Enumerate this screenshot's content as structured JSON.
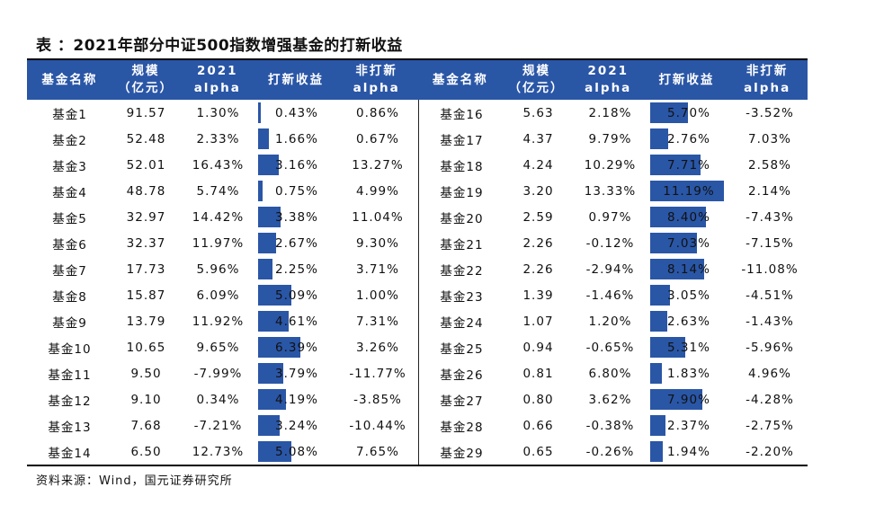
{
  "title": "表 ：2021年部分中证500指数增强基金的打新收益",
  "headers": {
    "name": "基金名称",
    "scale_line1": "规模",
    "scale_line2": "（亿元）",
    "alpha_line1": "2021",
    "alpha_line2": "alpha",
    "ipo": "打新收益",
    "nonipo_line1": "非打新",
    "nonipo_line2": "alpha"
  },
  "bar_max": 11.19,
  "left_rows": [
    {
      "name": "基金1",
      "scale": "91.57",
      "alpha": "1.30%",
      "ipo": "0.43%",
      "ipo_value": 0.43,
      "nonipo": "0.86%"
    },
    {
      "name": "基金2",
      "scale": "52.48",
      "alpha": "2.33%",
      "ipo": "1.66%",
      "ipo_value": 1.66,
      "nonipo": "0.67%"
    },
    {
      "name": "基金3",
      "scale": "52.01",
      "alpha": "16.43%",
      "ipo": "3.16%",
      "ipo_value": 3.16,
      "nonipo": "13.27%"
    },
    {
      "name": "基金4",
      "scale": "48.78",
      "alpha": "5.74%",
      "ipo": "0.75%",
      "ipo_value": 0.75,
      "nonipo": "4.99%"
    },
    {
      "name": "基金5",
      "scale": "32.97",
      "alpha": "14.42%",
      "ipo": "3.38%",
      "ipo_value": 3.38,
      "nonipo": "11.04%"
    },
    {
      "name": "基金6",
      "scale": "32.37",
      "alpha": "11.97%",
      "ipo": "2.67%",
      "ipo_value": 2.67,
      "nonipo": "9.30%"
    },
    {
      "name": "基金7",
      "scale": "17.73",
      "alpha": "5.96%",
      "ipo": "2.25%",
      "ipo_value": 2.25,
      "nonipo": "3.71%"
    },
    {
      "name": "基金8",
      "scale": "15.87",
      "alpha": "6.09%",
      "ipo": "5.09%",
      "ipo_value": 5.09,
      "nonipo": "1.00%"
    },
    {
      "name": "基金9",
      "scale": "13.79",
      "alpha": "11.92%",
      "ipo": "4.61%",
      "ipo_value": 4.61,
      "nonipo": "7.31%"
    },
    {
      "name": "基金10",
      "scale": "10.65",
      "alpha": "9.65%",
      "ipo": "6.39%",
      "ipo_value": 6.39,
      "nonipo": "3.26%"
    },
    {
      "name": "基金11",
      "scale": "9.50",
      "alpha": "-7.99%",
      "ipo": "3.79%",
      "ipo_value": 3.79,
      "nonipo": "-11.77%"
    },
    {
      "name": "基金12",
      "scale": "9.10",
      "alpha": "0.34%",
      "ipo": "4.19%",
      "ipo_value": 4.19,
      "nonipo": "-3.85%"
    },
    {
      "name": "基金13",
      "scale": "7.68",
      "alpha": "-7.21%",
      "ipo": "3.24%",
      "ipo_value": 3.24,
      "nonipo": "-10.44%"
    },
    {
      "name": "基金14",
      "scale": "6.50",
      "alpha": "12.73%",
      "ipo": "5.08%",
      "ipo_value": 5.08,
      "nonipo": "7.65%"
    }
  ],
  "right_rows": [
    {
      "name": "基金16",
      "scale": "5.63",
      "alpha": "2.18%",
      "ipo": "5.70%",
      "ipo_value": 5.7,
      "nonipo": "-3.52%"
    },
    {
      "name": "基金17",
      "scale": "4.37",
      "alpha": "9.79%",
      "ipo": "2.76%",
      "ipo_value": 2.76,
      "nonipo": "7.03%"
    },
    {
      "name": "基金18",
      "scale": "4.24",
      "alpha": "10.29%",
      "ipo": "7.71%",
      "ipo_value": 7.71,
      "nonipo": "2.58%"
    },
    {
      "name": "基金19",
      "scale": "3.20",
      "alpha": "13.33%",
      "ipo": "11.19%",
      "ipo_value": 11.19,
      "nonipo": "2.14%"
    },
    {
      "name": "基金20",
      "scale": "2.59",
      "alpha": "0.97%",
      "ipo": "8.40%",
      "ipo_value": 8.4,
      "nonipo": "-7.43%"
    },
    {
      "name": "基金21",
      "scale": "2.26",
      "alpha": "-0.12%",
      "ipo": "7.03%",
      "ipo_value": 7.03,
      "nonipo": "-7.15%"
    },
    {
      "name": "基金22",
      "scale": "2.26",
      "alpha": "-2.94%",
      "ipo": "8.14%",
      "ipo_value": 8.14,
      "nonipo": "-11.08%"
    },
    {
      "name": "基金23",
      "scale": "1.39",
      "alpha": "-1.46%",
      "ipo": "3.05%",
      "ipo_value": 3.05,
      "nonipo": "-4.51%"
    },
    {
      "name": "基金24",
      "scale": "1.07",
      "alpha": "1.20%",
      "ipo": "2.63%",
      "ipo_value": 2.63,
      "nonipo": "-1.43%"
    },
    {
      "name": "基金25",
      "scale": "0.94",
      "alpha": "-0.65%",
      "ipo": "5.31%",
      "ipo_value": 5.31,
      "nonipo": "-5.96%"
    },
    {
      "name": "基金26",
      "scale": "0.81",
      "alpha": "6.80%",
      "ipo": "1.83%",
      "ipo_value": 1.83,
      "nonipo": "4.96%"
    },
    {
      "name": "基金27",
      "scale": "0.80",
      "alpha": "3.62%",
      "ipo": "7.90%",
      "ipo_value": 7.9,
      "nonipo": "-4.28%"
    },
    {
      "name": "基金28",
      "scale": "0.66",
      "alpha": "-0.38%",
      "ipo": "2.37%",
      "ipo_value": 2.37,
      "nonipo": "-2.75%"
    },
    {
      "name": "基金29",
      "scale": "0.65",
      "alpha": "-0.26%",
      "ipo": "1.94%",
      "ipo_value": 1.94,
      "nonipo": "-2.20%"
    }
  ],
  "source": "资料来源：Wind，国元证券研究所",
  "colors": {
    "header_bg": "#2a56a6",
    "bar": "#2a56a6"
  }
}
